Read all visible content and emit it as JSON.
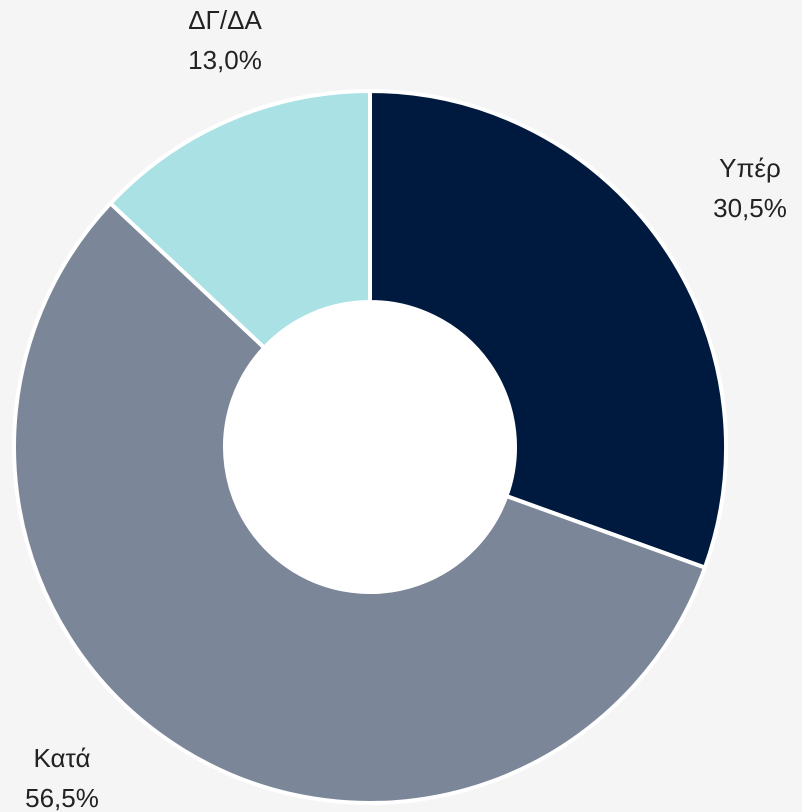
{
  "chart_data": {
    "type": "donut",
    "categories": [
      "Υπέρ",
      "Κατά",
      "ΔΓ/ΔΑ"
    ],
    "values": [
      30.5,
      56.5,
      13.0
    ],
    "value_labels": [
      "30,5%",
      "56,5%",
      "13,0%"
    ],
    "colors": [
      "#001a3f",
      "#7b8799",
      "#a9e1e4"
    ]
  }
}
